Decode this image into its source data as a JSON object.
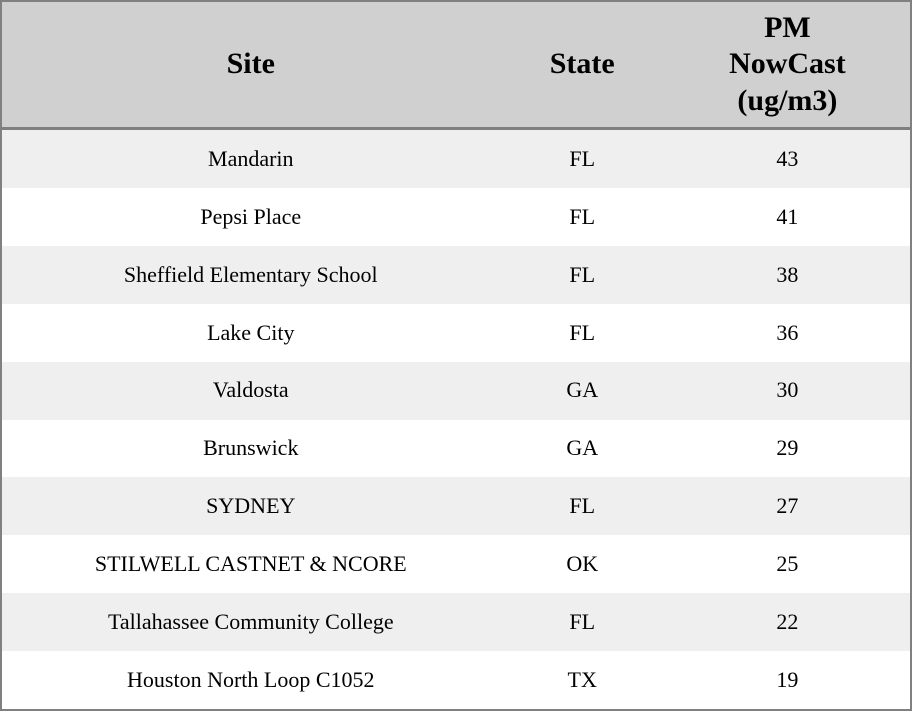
{
  "table": {
    "columns": [
      {
        "id": "site",
        "label": "Site"
      },
      {
        "id": "state",
        "label": "State"
      },
      {
        "id": "pm_nowcast",
        "label": "PM\nNowCast\n(ug/m3)"
      }
    ],
    "rows": [
      {
        "site": "Mandarin",
        "state": "FL",
        "pm_nowcast": "43"
      },
      {
        "site": "Pepsi Place",
        "state": "FL",
        "pm_nowcast": "41"
      },
      {
        "site": "Sheffield Elementary School",
        "state": "FL",
        "pm_nowcast": "38"
      },
      {
        "site": "Lake City",
        "state": "FL",
        "pm_nowcast": "36"
      },
      {
        "site": "Valdosta",
        "state": "GA",
        "pm_nowcast": "30"
      },
      {
        "site": "Brunswick",
        "state": "GA",
        "pm_nowcast": "29"
      },
      {
        "site": "SYDNEY",
        "state": "FL",
        "pm_nowcast": "27"
      },
      {
        "site": "STILWELL CASTNET & NCORE",
        "state": "OK",
        "pm_nowcast": "25"
      },
      {
        "site": "Tallahassee Community College",
        "state": "FL",
        "pm_nowcast": "22"
      },
      {
        "site": "Houston North Loop C1052",
        "state": "TX",
        "pm_nowcast": "19"
      }
    ]
  },
  "chart_data": {
    "type": "table",
    "columns": [
      "Site",
      "State",
      "PM NowCast (ug/m3)"
    ],
    "rows": [
      [
        "Mandarin",
        "FL",
        43
      ],
      [
        "Pepsi Place",
        "FL",
        41
      ],
      [
        "Sheffield Elementary School",
        "FL",
        38
      ],
      [
        "Lake City",
        "FL",
        36
      ],
      [
        "Valdosta",
        "GA",
        30
      ],
      [
        "Brunswick",
        "GA",
        29
      ],
      [
        "SYDNEY",
        "FL",
        27
      ],
      [
        "STILWELL CASTNET & NCORE",
        "OK",
        25
      ],
      [
        "Tallahassee Community College",
        "FL",
        22
      ],
      [
        "Houston North Loop C1052",
        "TX",
        19
      ]
    ],
    "layout_hints": {
      "striped": true,
      "stripe_rows": "odd",
      "header_position": "top",
      "cell_alignment": "center"
    }
  },
  "colors": {
    "header_bg": "#d0d0d0",
    "row_stripe_bg": "#efefef",
    "row_bg": "#ffffff",
    "border": "#808080",
    "text": "#000000"
  }
}
